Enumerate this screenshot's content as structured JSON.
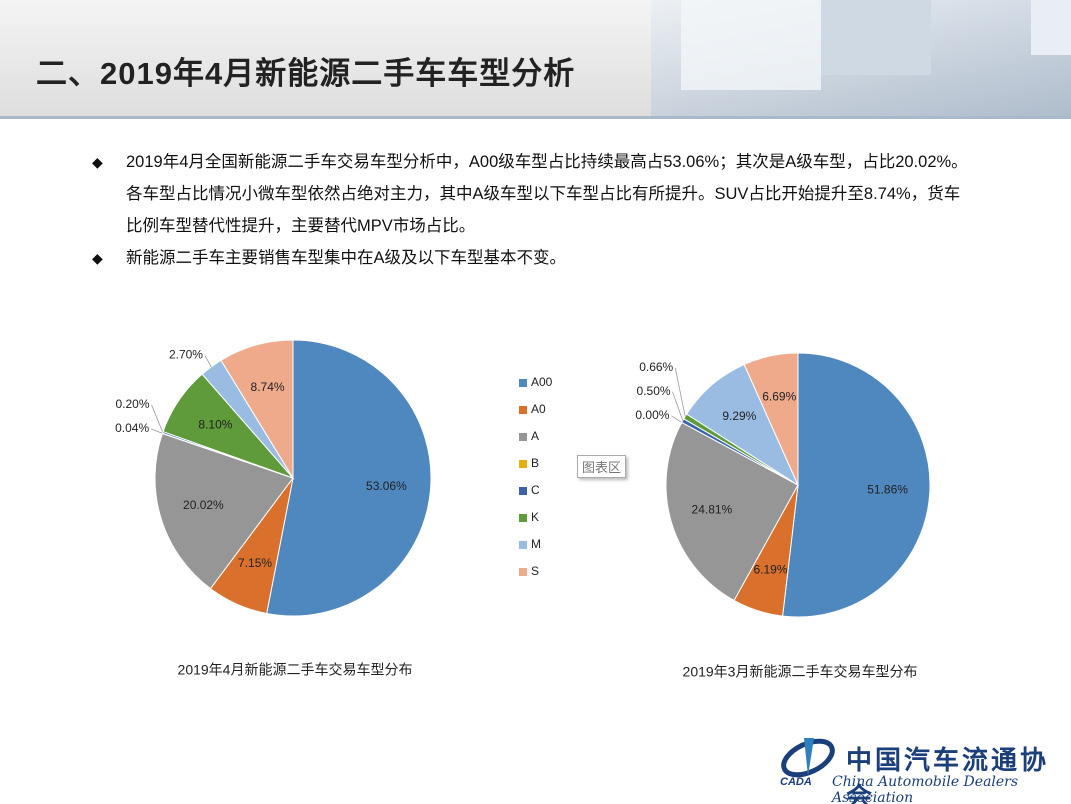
{
  "header": {
    "title": "二、2019年4月新能源二手车车型分析"
  },
  "bullets": [
    "2019年4月全国新能源二手车交易车型分析中，A00级车型占比持续最高占53.06%；其次是A级车型，占比20.02%。各车型占比情况小微车型依然占绝对主力，其中A级车型以下车型占比有所提升。SUV占比开始提升至8.74%，货车比例车型替代性提升，主要替代MPV市场占比。",
    "新能源二手车主要销售车型集中在A级及以下车型基本不变。"
  ],
  "tooltip": "图表区",
  "footer": {
    "name_cn": "中国汽车流通协会",
    "name_en": "China Automobile Dealers Association",
    "abbr": "CADA"
  },
  "chart_data": [
    {
      "type": "pie",
      "title": "2019年4月新能源二手车交易车型分布",
      "categories": [
        "A00",
        "A0",
        "A",
        "B",
        "C",
        "K",
        "M",
        "S"
      ],
      "values": [
        53.06,
        7.15,
        20.02,
        0.04,
        0.2,
        8.1,
        2.7,
        8.74
      ],
      "value_labels": [
        "53.06%",
        "7.15%",
        "20.02%",
        "0.04%",
        "0.20%",
        "8.10%",
        "2.70%",
        "8.74%"
      ],
      "colors": [
        "#4f87bf",
        "#d9702b",
        "#969696",
        "#e6b014",
        "#3a63ac",
        "#5f9a3b",
        "#9bbce2",
        "#efaa8c"
      ]
    },
    {
      "type": "pie",
      "title": "2019年3月新能源二手车交易车型分布",
      "categories": [
        "A00",
        "A0",
        "A",
        "B",
        "C",
        "K",
        "M",
        "S"
      ],
      "values": [
        51.86,
        6.19,
        24.81,
        0.0,
        0.5,
        0.66,
        9.29,
        6.69
      ],
      "value_labels": [
        "51.86%",
        "6.19%",
        "24.81%",
        "0.00%",
        "0.50%",
        "0.66%",
        "9.29%",
        "6.69%"
      ],
      "colors": [
        "#4f87bf",
        "#d9702b",
        "#969696",
        "#e6b014",
        "#3a63ac",
        "#5f9a3b",
        "#9bbce2",
        "#efaa8c"
      ]
    }
  ]
}
